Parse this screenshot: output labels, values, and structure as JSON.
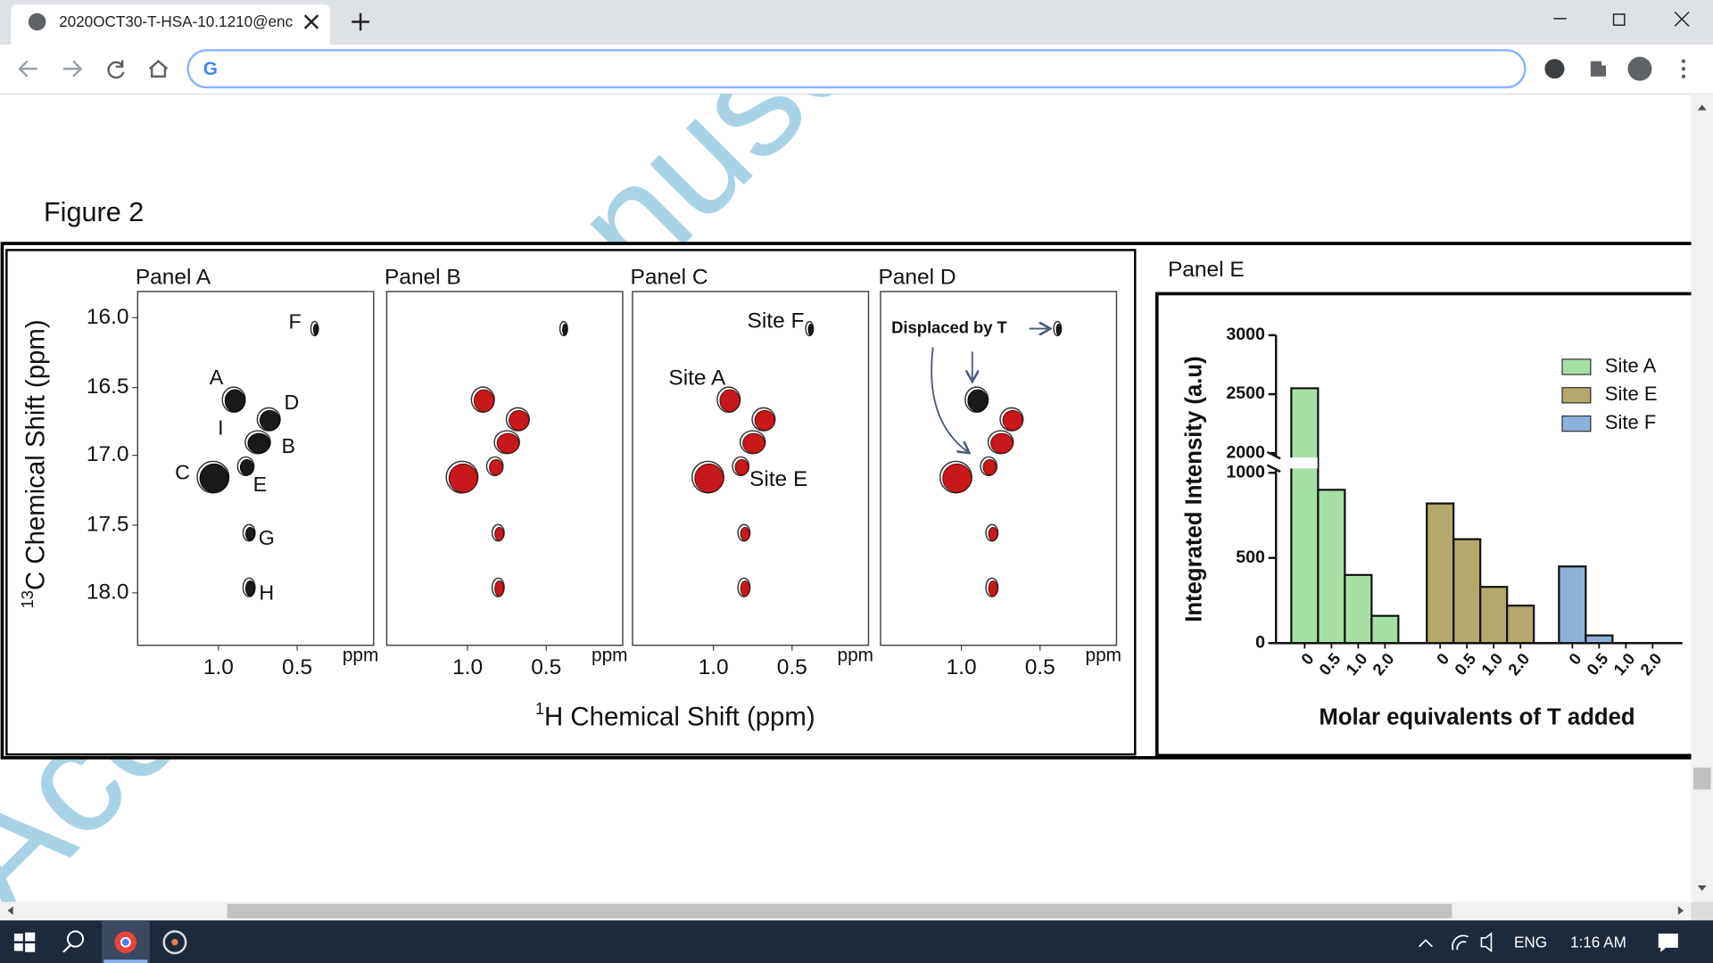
{
  "browser": {
    "tab_title": "2020OCT30-T-HSA-10.1210@enc"
  },
  "watermark": "Accepted Manuscript",
  "figure": {
    "title": "Figure 2",
    "panels": [
      "Panel A",
      "Panel B",
      "Panel C",
      "Panel D"
    ],
    "y_axis_label": {
      "sup": "13",
      "text": "C Chemical Shift (ppm)"
    },
    "x_axis_label": {
      "sup": "1",
      "text": "H Chemical Shift (ppm)"
    },
    "yticks": [
      "16.0",
      "16.5",
      "17.0",
      "17.5",
      "18.0"
    ],
    "xticks": [
      "1.0",
      "0.5"
    ],
    "x_unit": "ppm",
    "panel_a_labels": [
      "F",
      "A",
      "D",
      "I",
      "B",
      "C",
      "E",
      "G",
      "H"
    ],
    "panel_c_labels": [
      "Site F",
      "Site A",
      "Site E"
    ],
    "panel_d_annotation": "Displaced by T"
  },
  "chart_data": {
    "type": "bar",
    "title": "Panel E",
    "categories": [
      "0",
      "0.5",
      "1.0",
      "2.0"
    ],
    "series": [
      {
        "name": "Site A",
        "color": "#a6e0a6",
        "values": [
          2550,
          900,
          400,
          160
        ]
      },
      {
        "name": "Site E",
        "color": "#b4a86c",
        "values": [
          820,
          610,
          330,
          220
        ]
      },
      {
        "name": "Site F",
        "color": "#8eb1d9",
        "values": [
          450,
          45,
          0,
          0
        ]
      }
    ],
    "ylim": [
      0,
      3000
    ],
    "ybreak": [
      1000,
      2000
    ],
    "yticks": [
      0,
      500,
      1000,
      2000,
      2500,
      3000
    ],
    "y_label": "Integrated Intensity (a.u)",
    "x_label": "Molar equivalents of T added",
    "legend": "upper right"
  },
  "taskbar": {
    "language": "ENG",
    "time": "1:16 AM"
  }
}
